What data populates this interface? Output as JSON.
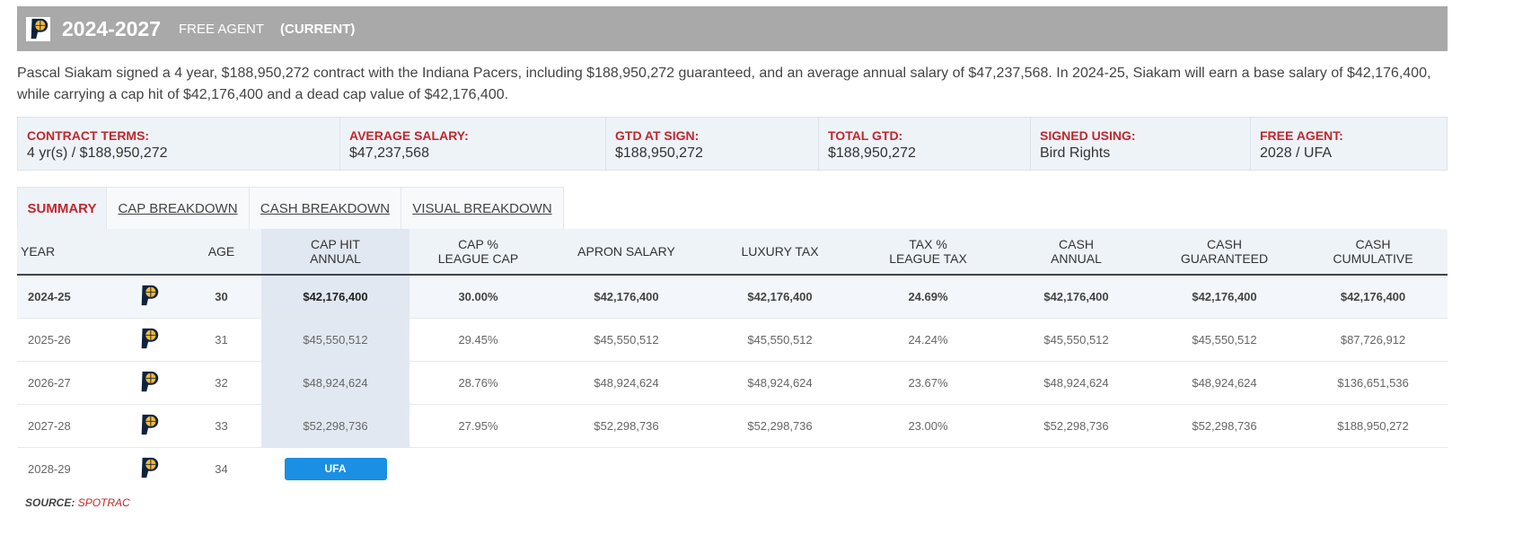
{
  "header": {
    "years": "2024-2027",
    "status": "FREE AGENT",
    "current": "(CURRENT)"
  },
  "description": "Pascal Siakam signed a 4 year, $188,950,272 contract with the Indiana Pacers, including $188,950,272 guaranteed, and an average annual salary of $47,237,568. In 2024-25, Siakam will earn a base salary of $42,176,400, while carrying a cap hit of $42,176,400 and a dead cap value of $42,176,400.",
  "terms": [
    {
      "label": "CONTRACT TERMS:",
      "value": "4 yr(s) / $188,950,272"
    },
    {
      "label": "AVERAGE SALARY:",
      "value": "$47,237,568"
    },
    {
      "label": "GTD AT SIGN:",
      "value": "$188,950,272"
    },
    {
      "label": "TOTAL GTD:",
      "value": "$188,950,272"
    },
    {
      "label": "SIGNED USING:",
      "value": "Bird Rights"
    },
    {
      "label": "FREE AGENT:",
      "value": "2028 / UFA"
    }
  ],
  "tabs": [
    "SUMMARY",
    "CAP BREAKDOWN",
    "CASH BREAKDOWN",
    "VISUAL BREAKDOWN"
  ],
  "columns": {
    "year": "YEAR",
    "age": "AGE",
    "cap_hit": [
      "CAP HIT",
      "ANNUAL"
    ],
    "cap_pct": [
      "CAP %",
      "LEAGUE CAP"
    ],
    "apron": "APRON SALARY",
    "lux": "LUXURY TAX",
    "tax_pct": [
      "TAX %",
      "LEAGUE TAX"
    ],
    "cash_annual": [
      "CASH",
      "ANNUAL"
    ],
    "cash_gtd": [
      "CASH",
      "GUARANTEED"
    ],
    "cash_cum": [
      "CASH",
      "CUMULATIVE"
    ]
  },
  "rows": [
    {
      "year": "2024-25",
      "age": "30",
      "cap_hit": "$42,176,400",
      "cap_pct": "30.00%",
      "apron": "$42,176,400",
      "lux": "$42,176,400",
      "tax_pct": "24.69%",
      "cash_annual": "$42,176,400",
      "cash_gtd": "$42,176,400",
      "cash_cum": "$42,176,400"
    },
    {
      "year": "2025-26",
      "age": "31",
      "cap_hit": "$45,550,512",
      "cap_pct": "29.45%",
      "apron": "$45,550,512",
      "lux": "$45,550,512",
      "tax_pct": "24.24%",
      "cash_annual": "$45,550,512",
      "cash_gtd": "$45,550,512",
      "cash_cum": "$87,726,912"
    },
    {
      "year": "2026-27",
      "age": "32",
      "cap_hit": "$48,924,624",
      "cap_pct": "28.76%",
      "apron": "$48,924,624",
      "lux": "$48,924,624",
      "tax_pct": "23.67%",
      "cash_annual": "$48,924,624",
      "cash_gtd": "$48,924,624",
      "cash_cum": "$136,651,536"
    },
    {
      "year": "2027-28",
      "age": "33",
      "cap_hit": "$52,298,736",
      "cap_pct": "27.95%",
      "apron": "$52,298,736",
      "lux": "$52,298,736",
      "tax_pct": "23.00%",
      "cash_annual": "$52,298,736",
      "cash_gtd": "$52,298,736",
      "cash_cum": "$188,950,272"
    }
  ],
  "fa_row": {
    "year": "2028-29",
    "age": "34",
    "badge": "UFA"
  },
  "source": {
    "label": "SOURCE:",
    "name": "SPOTRAC"
  },
  "colors": {
    "accent": "#c0272d",
    "badge": "#1a8fe3",
    "header_bg": "#a9a9a9"
  }
}
